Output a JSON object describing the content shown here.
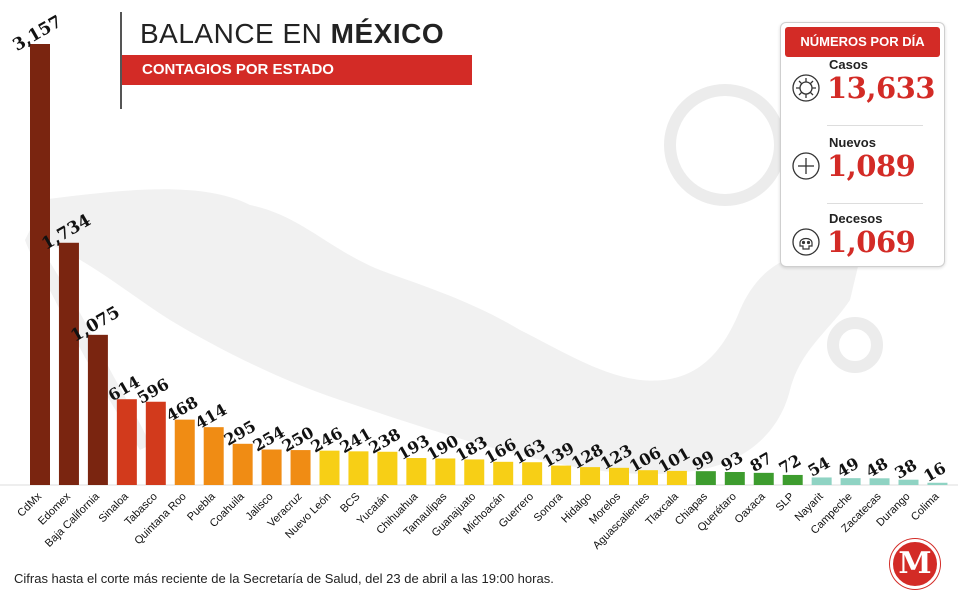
{
  "header": {
    "title_prefix": "BALANCE EN ",
    "title_bold": "MÉXICO",
    "subtitle": "CONTAGIOS POR ESTADO"
  },
  "panel": {
    "title": "NÚMEROS POR DÍA",
    "stats": [
      {
        "label": "Casos",
        "value": "13,633",
        "icon": "virus-icon"
      },
      {
        "label": "Nuevos",
        "value": "1,089",
        "icon": "plus-icon"
      },
      {
        "label": "Decesos",
        "value": "1,069",
        "icon": "skull-icon"
      }
    ]
  },
  "footnote": "Cifras hasta el corte más reciente de la Secretaría de Salud, del 23 de abril a las 19:00 horas.",
  "logo": {
    "letter": "M",
    "color": "#d32b26"
  },
  "colors": {
    "dark_brown": "#7a2510",
    "red": "#d23a1c",
    "orange": "#f08c14",
    "yellow": "#f7cf16",
    "green": "#3d9c2e",
    "teal": "#8fd3c3",
    "accent": "#d32b26"
  },
  "chart_data": {
    "type": "bar",
    "title": "BALANCE EN MÉXICO",
    "subtitle": "CONTAGIOS POR ESTADO",
    "xlabel": "",
    "ylabel": "",
    "categories": [
      "CdMx",
      "Edomex",
      "Baja California",
      "Sinaloa",
      "Tabasco",
      "Quintana Roo",
      "Puebla",
      "Coahuila",
      "Jalisco",
      "Veracruz",
      "Nuevo León",
      "BCS",
      "Yucatán",
      "Chihuahua",
      "Tamaulipas",
      "Guanajuato",
      "Michoacán",
      "Guerrero",
      "Sonora",
      "Hidalgo",
      "Morelos",
      "Aguascalientes",
      "Tlaxcala",
      "Chiapas",
      "Querétaro",
      "Oaxaca",
      "SLP",
      "Nayarit",
      "Campeche",
      "Zacatecas",
      "Durango",
      "Colima"
    ],
    "values": [
      3157,
      1734,
      1075,
      614,
      596,
      468,
      414,
      295,
      254,
      250,
      246,
      241,
      238,
      193,
      190,
      183,
      166,
      163,
      139,
      128,
      123,
      106,
      101,
      99,
      93,
      87,
      72,
      54,
      49,
      48,
      38,
      16
    ],
    "labels": [
      "3,157",
      "1,734",
      "1,075",
      "614",
      "596",
      "468",
      "414",
      "295",
      "254",
      "250",
      "246",
      "241",
      "238",
      "193",
      "190",
      "183",
      "166",
      "163",
      "139",
      "128",
      "123",
      "106",
      "101",
      "99",
      "93",
      "87",
      "72",
      "54",
      "49",
      "48",
      "38",
      "16"
    ],
    "color_groups": [
      "dark_brown",
      "dark_brown",
      "dark_brown",
      "red",
      "red",
      "orange",
      "orange",
      "orange",
      "orange",
      "orange",
      "yellow",
      "yellow",
      "yellow",
      "yellow",
      "yellow",
      "yellow",
      "yellow",
      "yellow",
      "yellow",
      "yellow",
      "yellow",
      "yellow",
      "yellow",
      "green",
      "green",
      "green",
      "green",
      "teal",
      "teal",
      "teal",
      "teal",
      "teal"
    ],
    "grid": false,
    "legend": "none"
  }
}
